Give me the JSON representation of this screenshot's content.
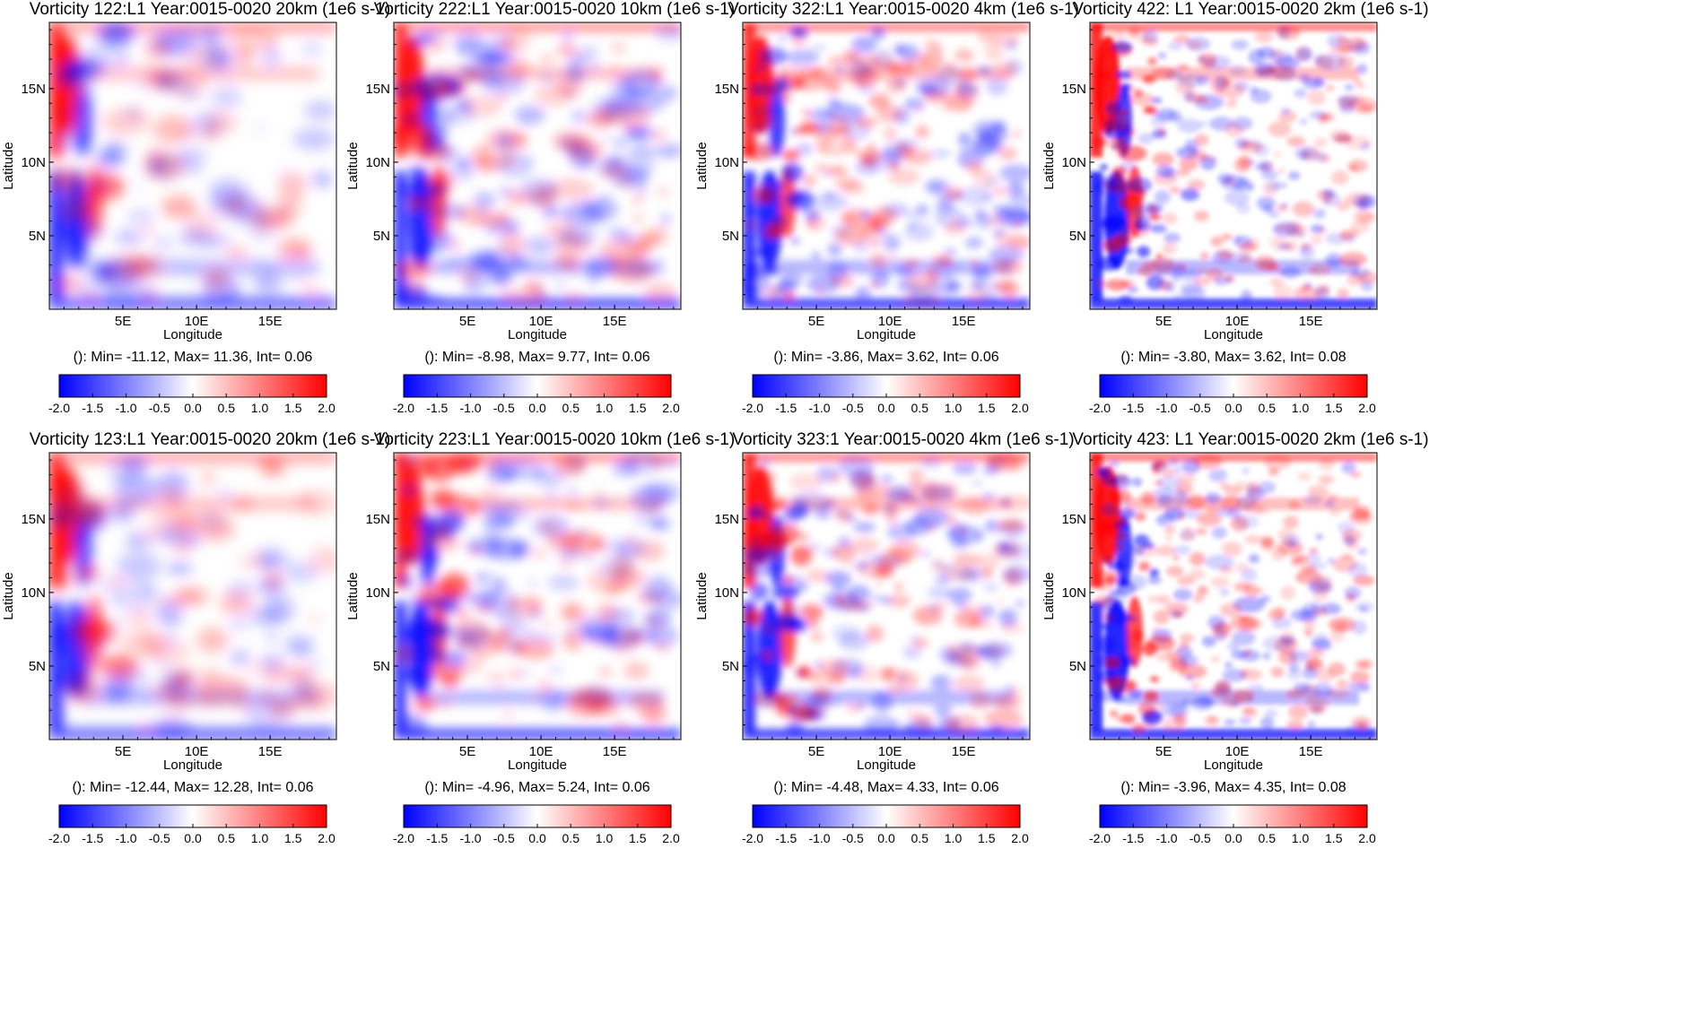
{
  "colors": {
    "negative": "#0000ff",
    "zero": "#ffffff",
    "positive": "#ff0000"
  },
  "colorbar_ticks": [
    "-2.0",
    "-1.5",
    "-1.0",
    "-0.5",
    "0.0",
    "0.5",
    "1.0",
    "1.5",
    "2.0"
  ],
  "panels": [
    {
      "title": "Vorticity 122:L1 Year:0015-0020 20km (1e6 s-1)",
      "stats": "(): Min= -11.12, Max= 11.36, Int= 0.06"
    },
    {
      "title": "Vorticity 222:L1 Year:0015-0020 10km (1e6 s-1)",
      "stats": "(): Min= -8.98, Max= 9.77, Int= 0.06"
    },
    {
      "title": "Vorticity 322:L1 Year:0015-0020 4km (1e6 s-1)",
      "stats": "(): Min= -3.86, Max= 3.62, Int= 0.06"
    },
    {
      "title": "Vorticity 422: L1 Year:0015-0020 2km (1e6 s-1)",
      "stats": "(): Min= -3.80, Max= 3.62, Int= 0.08"
    },
    {
      "title": "Vorticity 123:L1 Year:0015-0020 20km (1e6 s-1)",
      "stats": "(): Min= -12.44, Max= 12.28, Int= 0.06"
    },
    {
      "title": "Vorticity 223:L1 Year:0015-0020 10km (1e6 s-1)",
      "stats": "(): Min= -4.96, Max= 5.24, Int= 0.06"
    },
    {
      "title": "Vorticity 323:1 Year:0015-0020 4km (1e6 s-1)",
      "stats": "(): Min= -4.48, Max= 4.33, Int= 0.06"
    },
    {
      "title": "Vorticity 423: L1 Year:0015-0020 2km (1e6 s-1)",
      "stats": "(): Min= -3.96, Max= 4.35, Int= 0.08"
    }
  ],
  "chart_data": {
    "type": "heatmap",
    "panel_count": 8,
    "layout": "2 rows x 4 columns",
    "xlabel": "Longitude",
    "ylabel": "Latitude",
    "x_ticks": [
      "5E",
      "10E",
      "15E"
    ],
    "y_ticks": [
      "5N",
      "10N",
      "15N"
    ],
    "xlim": [
      0,
      19.5
    ],
    "ylim": [
      0,
      19.5
    ],
    "color_scale": {
      "min": -2.0,
      "max": 2.0,
      "colormap": "blue-white-red"
    },
    "grid": false
  }
}
